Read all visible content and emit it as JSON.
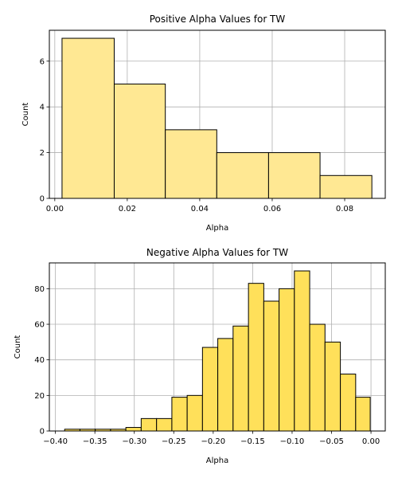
{
  "chart_data": [
    {
      "type": "bar",
      "title": "Positive Alpha Values for TW",
      "xlabel": "Alpha",
      "ylabel": "Count",
      "xlim": [
        -0.0015,
        0.0912
      ],
      "ylim": [
        0,
        7.35
      ],
      "xticks": [
        0.0,
        0.02,
        0.04,
        0.06,
        0.08
      ],
      "xtick_labels": [
        "0.00",
        "0.02",
        "0.04",
        "0.06",
        "0.08"
      ],
      "yticks": [
        0,
        2,
        4,
        6
      ],
      "ytick_labels": [
        "0",
        "2",
        "4",
        "6"
      ],
      "bins": [
        {
          "x0": 0.002,
          "x1": 0.0164,
          "count": 7
        },
        {
          "x0": 0.0164,
          "x1": 0.0305,
          "count": 5
        },
        {
          "x0": 0.0305,
          "x1": 0.0447,
          "count": 3
        },
        {
          "x0": 0.0447,
          "x1": 0.059,
          "count": 2
        },
        {
          "x0": 0.059,
          "x1": 0.0732,
          "count": 2
        },
        {
          "x0": 0.0732,
          "x1": 0.0875,
          "count": 1
        }
      ],
      "grid": true,
      "bar_fill": "#ffe893",
      "bar_edge": "#000000",
      "grid_color": "#b0b0b0"
    },
    {
      "type": "bar",
      "title": "Negative Alpha Values for TW",
      "xlabel": "Alpha",
      "ylabel": "Count",
      "xlim": [
        -0.4077,
        0.0181
      ],
      "ylim": [
        0,
        94.5
      ],
      "xticks": [
        -0.4,
        -0.35,
        -0.3,
        -0.25,
        -0.2,
        -0.15,
        -0.1,
        -0.05,
        0.0
      ],
      "xtick_labels": [
        "−0.40",
        "−0.35",
        "−0.30",
        "−0.25",
        "−0.20",
        "−0.15",
        "−0.10",
        "−0.05",
        "0.00"
      ],
      "yticks": [
        0,
        20,
        40,
        60,
        80
      ],
      "ytick_labels": [
        "0",
        "20",
        "40",
        "60",
        "80"
      ],
      "bins": [
        {
          "x0": -0.3883,
          "x1": -0.3689,
          "count": 1
        },
        {
          "x0": -0.3689,
          "x1": -0.3495,
          "count": 1
        },
        {
          "x0": -0.3495,
          "x1": -0.3301,
          "count": 1
        },
        {
          "x0": -0.3301,
          "x1": -0.3107,
          "count": 1
        },
        {
          "x0": -0.3107,
          "x1": -0.2913,
          "count": 2
        },
        {
          "x0": -0.2913,
          "x1": -0.2718,
          "count": 7
        },
        {
          "x0": -0.2718,
          "x1": -0.2524,
          "count": 7
        },
        {
          "x0": -0.2524,
          "x1": -0.233,
          "count": 19
        },
        {
          "x0": -0.233,
          "x1": -0.2136,
          "count": 20
        },
        {
          "x0": -0.2136,
          "x1": -0.1942,
          "count": 47
        },
        {
          "x0": -0.1942,
          "x1": -0.1748,
          "count": 52
        },
        {
          "x0": -0.1748,
          "x1": -0.1553,
          "count": 59
        },
        {
          "x0": -0.1553,
          "x1": -0.1359,
          "count": 83
        },
        {
          "x0": -0.1359,
          "x1": -0.1165,
          "count": 73
        },
        {
          "x0": -0.1165,
          "x1": -0.0971,
          "count": 80
        },
        {
          "x0": -0.0971,
          "x1": -0.0777,
          "count": 90
        },
        {
          "x0": -0.0777,
          "x1": -0.0583,
          "count": 60
        },
        {
          "x0": -0.0583,
          "x1": -0.0388,
          "count": 50
        },
        {
          "x0": -0.0388,
          "x1": -0.0194,
          "count": 32
        },
        {
          "x0": -0.0194,
          "x1": -0.001,
          "count": 19
        }
      ],
      "grid": true,
      "bar_fill": "#ffe05a",
      "bar_edge": "#000000",
      "grid_color": "#b0b0b0"
    }
  ]
}
